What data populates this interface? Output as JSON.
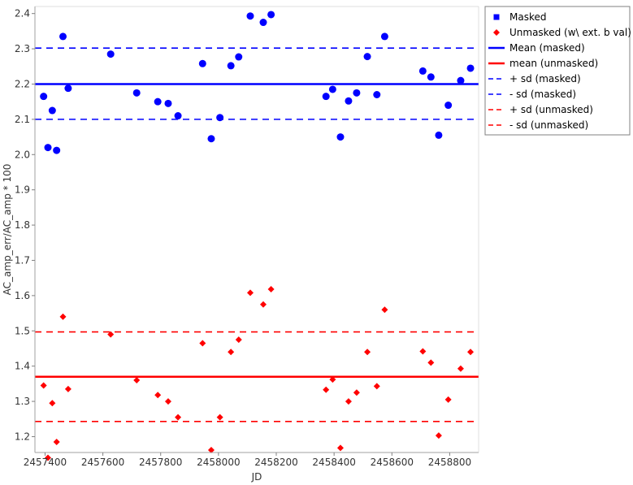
{
  "chart_data": {
    "type": "scatter",
    "xlabel": "JD",
    "ylabel": "AC_amp_err/AC_amp * 100",
    "xlim": [
      2457365,
      2458900
    ],
    "ylim": [
      1.155,
      2.42
    ],
    "x_ticks": [
      2457400,
      2457600,
      2457800,
      2458000,
      2458200,
      2458400,
      2458600,
      2458800
    ],
    "x_tick_labels": [
      "2457400",
      "2457600",
      "2457800",
      "2458000",
      "2458200",
      "2458400",
      "2458600",
      "2458800"
    ],
    "y_ticks": [
      1.2,
      1.3,
      1.4,
      1.5,
      1.6,
      1.7,
      1.8,
      1.9,
      2.0,
      2.1,
      2.2,
      2.3,
      2.4
    ],
    "y_tick_labels": [
      "1.2",
      "1.3",
      "1.4",
      "1.5",
      "1.6",
      "1.7",
      "1.8",
      "1.9",
      "2.0",
      "2.1",
      "2.2",
      "2.3",
      "2.4"
    ],
    "grid": false,
    "legend_position": "outside-right-top",
    "legend": [
      {
        "label": "Masked",
        "symbol": "square",
        "color": "#0000ff"
      },
      {
        "label": "Unmasked (w\\ ext. b val)",
        "symbol": "diamond",
        "color": "#ff0000"
      },
      {
        "label": "Mean (masked)",
        "symbol": "line-solid",
        "color": "#0000ff"
      },
      {
        "label": "mean (unmasked)",
        "symbol": "line-solid",
        "color": "#ff0000"
      },
      {
        "label": "+ sd (masked)",
        "symbol": "line-dashed",
        "color": "#0000ff"
      },
      {
        "label": "- sd (masked)",
        "symbol": "line-dashed",
        "color": "#0000ff"
      },
      {
        "label": "+ sd (unmasked)",
        "symbol": "line-dashed",
        "color": "#ff0000"
      },
      {
        "label": "- sd (unmasked)",
        "symbol": "line-dashed",
        "color": "#ff0000"
      }
    ],
    "series": [
      {
        "name": "Masked",
        "color": "#0000ff",
        "marker": "circle",
        "points": [
          [
            2457395,
            2.165
          ],
          [
            2457410,
            2.02
          ],
          [
            2457425,
            2.125
          ],
          [
            2457440,
            2.012
          ],
          [
            2457462,
            2.335
          ],
          [
            2457480,
            2.188
          ],
          [
            2457627,
            2.285
          ],
          [
            2457717,
            2.175
          ],
          [
            2457790,
            2.15
          ],
          [
            2457826,
            2.145
          ],
          [
            2457860,
            2.11
          ],
          [
            2457945,
            2.258
          ],
          [
            2457975,
            2.045
          ],
          [
            2458005,
            2.105
          ],
          [
            2458043,
            2.252
          ],
          [
            2458070,
            2.277
          ],
          [
            2458110,
            2.393
          ],
          [
            2458155,
            2.375
          ],
          [
            2458182,
            2.397
          ],
          [
            2458372,
            2.165
          ],
          [
            2458395,
            2.185
          ],
          [
            2458422,
            2.05
          ],
          [
            2458450,
            2.152
          ],
          [
            2458478,
            2.175
          ],
          [
            2458515,
            2.278
          ],
          [
            2458548,
            2.17
          ],
          [
            2458575,
            2.335
          ],
          [
            2458707,
            2.237
          ],
          [
            2458735,
            2.22
          ],
          [
            2458762,
            2.055
          ],
          [
            2458795,
            2.14
          ],
          [
            2458838,
            2.21
          ],
          [
            2458872,
            2.245
          ]
        ]
      },
      {
        "name": "Unmasked (w\\ ext. b val)",
        "color": "#ff0000",
        "marker": "diamond",
        "points": [
          [
            2457395,
            1.345
          ],
          [
            2457410,
            1.14
          ],
          [
            2457425,
            1.295
          ],
          [
            2457440,
            1.185
          ],
          [
            2457462,
            1.54
          ],
          [
            2457480,
            1.335
          ],
          [
            2457627,
            1.49
          ],
          [
            2457717,
            1.36
          ],
          [
            2457790,
            1.318
          ],
          [
            2457826,
            1.3
          ],
          [
            2457860,
            1.255
          ],
          [
            2457945,
            1.465
          ],
          [
            2457975,
            1.162
          ],
          [
            2458005,
            1.255
          ],
          [
            2458043,
            1.44
          ],
          [
            2458070,
            1.475
          ],
          [
            2458110,
            1.608
          ],
          [
            2458155,
            1.575
          ],
          [
            2458182,
            1.618
          ],
          [
            2458372,
            1.333
          ],
          [
            2458395,
            1.362
          ],
          [
            2458422,
            1.168
          ],
          [
            2458450,
            1.3
          ],
          [
            2458478,
            1.325
          ],
          [
            2458515,
            1.44
          ],
          [
            2458548,
            1.343
          ],
          [
            2458575,
            1.56
          ],
          [
            2458707,
            1.442
          ],
          [
            2458735,
            1.41
          ],
          [
            2458762,
            1.203
          ],
          [
            2458795,
            1.305
          ],
          [
            2458838,
            1.393
          ],
          [
            2458872,
            1.44
          ]
        ]
      }
    ],
    "reference_lines": [
      {
        "name": "Mean (masked)",
        "y": 2.2,
        "color": "#0000ff",
        "style": "solid"
      },
      {
        "name": "mean (unmasked)",
        "y": 1.37,
        "color": "#ff0000",
        "style": "solid"
      },
      {
        "name": "+ sd (masked)",
        "y": 2.302,
        "color": "#0000ff",
        "style": "dashed"
      },
      {
        "name": "- sd (masked)",
        "y": 2.1,
        "color": "#0000ff",
        "style": "dashed"
      },
      {
        "name": "+ sd (unmasked)",
        "y": 1.497,
        "color": "#ff0000",
        "style": "dashed"
      },
      {
        "name": "- sd (unmasked)",
        "y": 1.243,
        "color": "#ff0000",
        "style": "dashed"
      }
    ]
  }
}
